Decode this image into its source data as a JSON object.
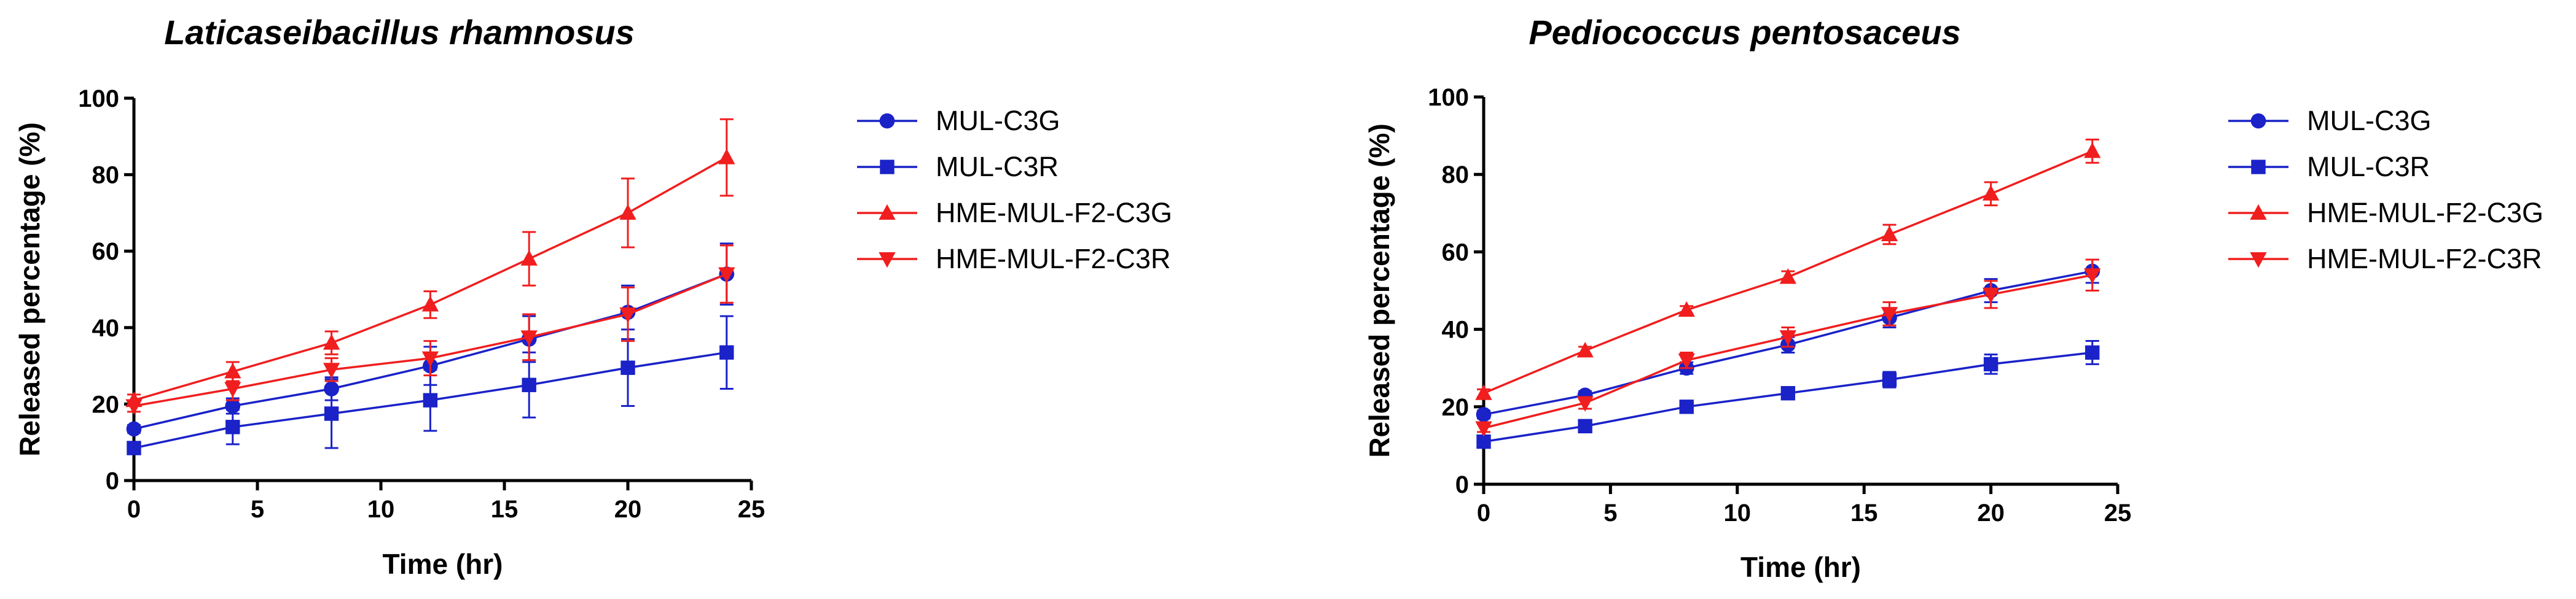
{
  "chart_data": [
    {
      "type": "line",
      "title": "Laticaseibacillus rhamnosus",
      "xlabel": "Time (hr)",
      "ylabel": "Released percentage (%)",
      "xlim": [
        0,
        25
      ],
      "ylim": [
        0,
        100
      ],
      "xticks": [
        0,
        5,
        10,
        15,
        20,
        25
      ],
      "yticks": [
        0,
        20,
        40,
        60,
        80,
        100
      ],
      "x": [
        0,
        4,
        8,
        12,
        16,
        20,
        24
      ],
      "series": [
        {
          "name": "MUL-C3G",
          "color": "#1a22c8",
          "marker": "circle",
          "values": [
            13.5,
            19.5,
            24,
            30,
            37,
            44,
            54
          ],
          "errors": [
            1,
            2,
            3,
            5,
            6,
            7,
            8
          ]
        },
        {
          "name": "MUL-C3R",
          "color": "#1a22c8",
          "marker": "square",
          "values": [
            8.5,
            14,
            17.5,
            21,
            25,
            29.5,
            33.5
          ],
          "errors": [
            1.5,
            4.5,
            9,
            8,
            8.5,
            10,
            9.5
          ]
        },
        {
          "name": "HME-MUL-F2-C3G",
          "color": "#f01e1e",
          "marker": "triangle-up",
          "values": [
            21,
            28.5,
            36,
            46,
            58,
            70,
            84.5
          ],
          "errors": [
            1.5,
            2.5,
            3,
            3.5,
            7,
            9,
            10
          ]
        },
        {
          "name": "HME-MUL-F2-C3R",
          "color": "#f01e1e",
          "marker": "triangle-down",
          "values": [
            19.5,
            24,
            29,
            32,
            37.5,
            43.5,
            54
          ],
          "errors": [
            1.5,
            3,
            3,
            4.5,
            6,
            7,
            7.5
          ]
        }
      ]
    },
    {
      "type": "line",
      "title": "Pediococcus pentosaceus",
      "xlabel": "Time (hr)",
      "ylabel": "Released percentage (%)",
      "xlim": [
        0,
        25
      ],
      "ylim": [
        0,
        100
      ],
      "xticks": [
        0,
        5,
        10,
        15,
        20,
        25
      ],
      "yticks": [
        0,
        20,
        40,
        60,
        80,
        100
      ],
      "x": [
        0,
        4,
        8,
        12,
        16,
        20,
        24
      ],
      "series": [
        {
          "name": "MUL-C3G",
          "color": "#1a22c8",
          "marker": "circle",
          "values": [
            18,
            23,
            30,
            36,
            43,
            50,
            55
          ],
          "errors": [
            1,
            1,
            1.5,
            2,
            2.5,
            3,
            3
          ]
        },
        {
          "name": "MUL-C3R",
          "color": "#1a22c8",
          "marker": "square",
          "values": [
            11,
            15,
            20,
            23.5,
            27,
            31,
            34
          ],
          "errors": [
            1,
            1,
            1,
            1.5,
            2,
            2.5,
            3
          ]
        },
        {
          "name": "HME-MUL-F2-C3G",
          "color": "#f01e1e",
          "marker": "triangle-up",
          "values": [
            23.5,
            34.5,
            45,
            53.5,
            64.5,
            75,
            86
          ],
          "errors": [
            1,
            1,
            1,
            1.5,
            2.5,
            3,
            3
          ]
        },
        {
          "name": "HME-MUL-F2-C3R",
          "color": "#f01e1e",
          "marker": "triangle-down",
          "values": [
            14.5,
            21,
            32,
            38,
            44,
            49,
            54
          ],
          "errors": [
            1,
            1.5,
            2,
            2.5,
            3,
            3.5,
            4
          ]
        }
      ]
    }
  ]
}
